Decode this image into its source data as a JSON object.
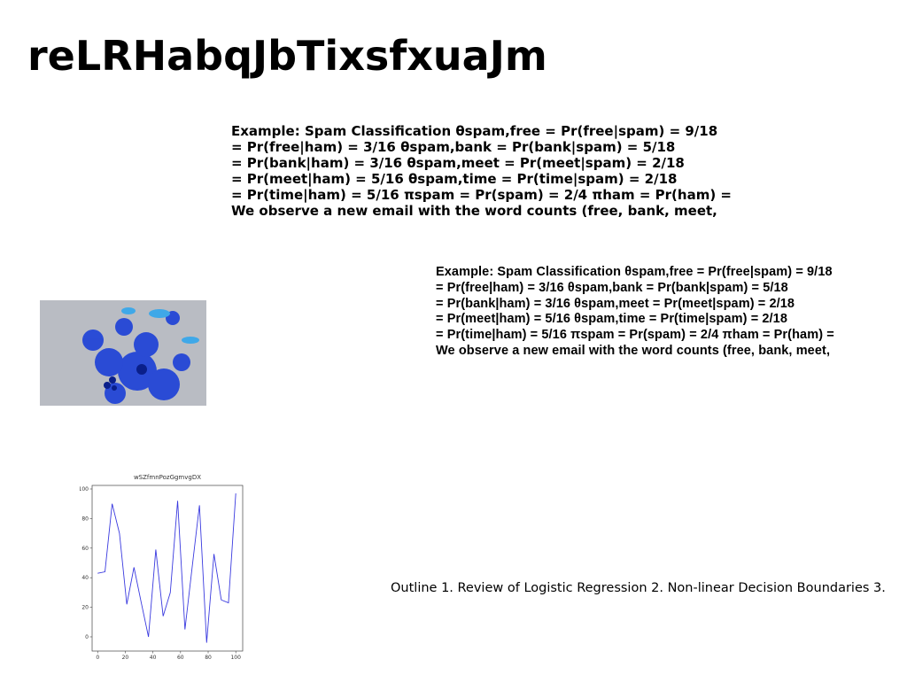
{
  "title": "reLRHabqJbTixsfxuaJm",
  "block1": {
    "lines": [
      "Example: Spam Classification θspam,free = Pr(free|spam) = 9/18",
      "= Pr(free|ham) = 3/16 θspam,bank = Pr(bank|spam) = 5/18",
      "= Pr(bank|ham) = 3/16 θspam,meet = Pr(meet|spam) = 2/18",
      "= Pr(meet|ham) = 5/16 θspam,time = Pr(time|spam) = 2/18",
      "= Pr(time|ham) = 5/16 πspam = Pr(spam) = 2/4 πham = Pr(ham) =",
      "We observe a new email with the word counts (free, bank, meet,"
    ]
  },
  "block2": {
    "lines": [
      "Example: Spam Classification θspam,free = Pr(free|spam) = 9/18",
      "= Pr(free|ham) = 3/16 θspam,bank = Pr(bank|spam) = 5/18",
      "= Pr(bank|ham) = 3/16 θspam,meet = Pr(meet|spam) = 2/18",
      "= Pr(meet|ham) = 5/16 θspam,time = Pr(time|spam) = 2/18",
      "= Pr(time|ham) = 5/16 πspam = Pr(spam) = 2/4 πham = Pr(ham) =",
      "We observe a new email with the word counts (free, bank, meet,"
    ]
  },
  "outline": "Outline 1. Review of Logistic Regression 2. Non-linear Decision Boundaries 3.",
  "chart_data": {
    "type": "line",
    "title": "wSZfmnPozGgmvgDX",
    "x": [
      0,
      5.3,
      10.5,
      15.8,
      21.1,
      26.3,
      31.6,
      36.8,
      42.1,
      47.4,
      52.6,
      57.9,
      63.2,
      68.4,
      73.7,
      78.9,
      84.2,
      89.5,
      94.7,
      100
    ],
    "series": [
      {
        "name": null,
        "color": "#3a3adf",
        "values": [
          43,
          44,
          90,
          70,
          22,
          47,
          23,
          0,
          59,
          14,
          30,
          92,
          5,
          47,
          89,
          -4,
          56,
          25,
          23,
          97
        ]
      }
    ],
    "xlim": [
      -4,
      105
    ],
    "ylim": [
      -9.6,
      102.4
    ],
    "xticks": [
      0,
      20,
      40,
      60,
      80,
      100
    ],
    "yticks": [
      0,
      20,
      40,
      60,
      80,
      100
    ]
  }
}
